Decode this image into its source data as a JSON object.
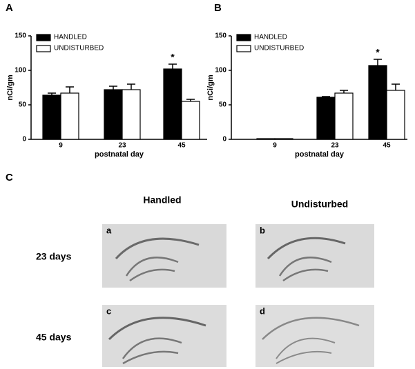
{
  "chart_data": [
    {
      "type": "bar",
      "panel_label": "A",
      "ylabel": "nCi/gm",
      "xlabel": "postnatal day",
      "categories": [
        "9",
        "23",
        "45"
      ],
      "series": [
        {
          "name": "HANDLED",
          "color": "#000000",
          "values": [
            64,
            72,
            102
          ],
          "errors": [
            3,
            5,
            7
          ]
        },
        {
          "name": "UNDISTURBED",
          "color": "#ffffff",
          "values": [
            67,
            72,
            55
          ],
          "errors": [
            9,
            8,
            3
          ]
        }
      ],
      "ylim": [
        0,
        150
      ],
      "yticks": [
        0,
        50,
        100,
        150
      ],
      "legend": "upper left",
      "annotations": [
        {
          "text": "*",
          "x": "45"
        }
      ]
    },
    {
      "type": "bar",
      "panel_label": "B",
      "ylabel": "nCi/gm",
      "xlabel": "postnatal day",
      "categories": [
        "9",
        "23",
        "45"
      ],
      "series": [
        {
          "name": "HANDLED",
          "color": "#000000",
          "values": [
            1,
            61,
            107
          ],
          "errors": [
            0,
            1,
            9
          ]
        },
        {
          "name": "UNDISTURBED",
          "color": "#ffffff",
          "values": [
            1,
            67,
            71
          ],
          "errors": [
            0,
            4,
            9
          ]
        }
      ],
      "ylim": [
        0,
        150
      ],
      "yticks": [
        0,
        50,
        100,
        150
      ],
      "legend": "upper left",
      "annotations": [
        {
          "text": "*",
          "x": "45"
        }
      ]
    }
  ],
  "panel_c": {
    "label": "C",
    "columns": [
      "Handled",
      "Undisturbed"
    ],
    "rows": [
      "23 days",
      "45 days"
    ],
    "images": [
      "a",
      "b",
      "c",
      "d"
    ]
  }
}
